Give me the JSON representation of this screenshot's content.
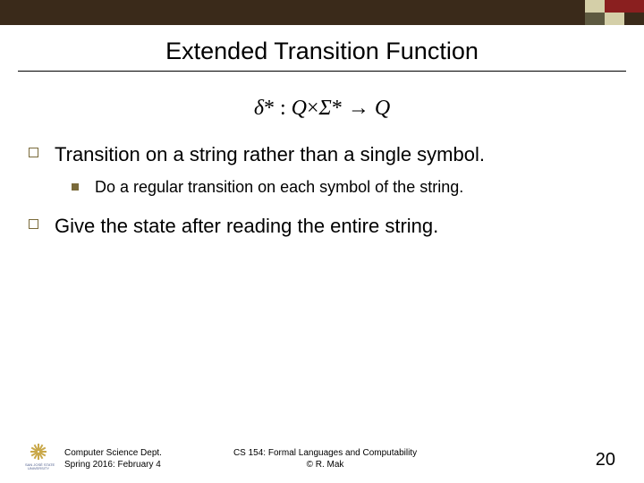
{
  "colors": {
    "bar_dark": "#3a2a1a",
    "sq1": "#d4cfa8",
    "sq2": "#8a1f1f",
    "sq3": "#5d5940",
    "bullet": "#7a6a3a",
    "logo_burst": "#c9a84a",
    "logo_text": "#4a5a8a"
  },
  "title": "Extended Transition Function",
  "formula": {
    "delta": "δ",
    "star": "*",
    "colon": " : ",
    "Q1": "Q",
    "cross": "×",
    "Sigma": "Σ",
    "star2": "*",
    "arrow": " → ",
    "Q2": "Q"
  },
  "bullets": [
    {
      "text": "Transition on a string rather than a single symbol.",
      "sub": [
        {
          "text": "Do a regular transition on each symbol of the string."
        }
      ]
    },
    {
      "text": "Give the state after reading the entire string.",
      "sub": []
    }
  ],
  "footer": {
    "logo_line1": "SAN JOSÉ STATE",
    "logo_line2": "UNIVERSITY",
    "left_line1": "Computer Science Dept.",
    "left_line2": "Spring 2016: February 4",
    "center_line1": "CS 154: Formal Languages and Computability",
    "center_line2": "© R. Mak",
    "page": "20"
  }
}
